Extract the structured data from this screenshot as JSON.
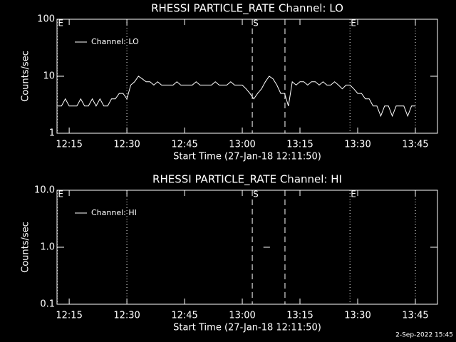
{
  "chart_data": [
    {
      "type": "line",
      "title": "RHESSI PARTICLE_RATE Channel: LO",
      "xlabel": "Start Time (27-Jan-18 12:11:50)",
      "ylabel": "Counts/sec",
      "log_y": true,
      "legend": "top-left",
      "xlim": [
        731.83,
        830.75
      ],
      "xticks": [
        {
          "value": 735,
          "label": "12:15"
        },
        {
          "value": 750,
          "label": "12:30"
        },
        {
          "value": 765,
          "label": "12:45"
        },
        {
          "value": 780,
          "label": "13:00"
        },
        {
          "value": 795,
          "label": "13:15"
        },
        {
          "value": 810,
          "label": "13:30"
        },
        {
          "value": 825,
          "label": "13:45"
        }
      ],
      "ylim": [
        1,
        100
      ],
      "yticks": [
        1,
        10,
        100
      ],
      "x": [
        732,
        733,
        734,
        735,
        736,
        737,
        738,
        739,
        740,
        741,
        742,
        743,
        744,
        745,
        746,
        747,
        748,
        749,
        750,
        751,
        752,
        753,
        754,
        755,
        756,
        757,
        758,
        759,
        760,
        761,
        762,
        763,
        764,
        765,
        766,
        767,
        768,
        769,
        770,
        771,
        772,
        773,
        774,
        775,
        776,
        777,
        778,
        779,
        780,
        781,
        782,
        783,
        784,
        785,
        786,
        787,
        788,
        789,
        790,
        791,
        792,
        793,
        794,
        795,
        796,
        797,
        798,
        799,
        800,
        801,
        802,
        803,
        804,
        805,
        806,
        807,
        808,
        809,
        810,
        811,
        812,
        813,
        814,
        815,
        816,
        817,
        818,
        819,
        820,
        821,
        822,
        823,
        824,
        825
      ],
      "series": [
        {
          "name": "Channel: LO",
          "color": "#ffffff",
          "values": [
            3,
            3,
            4,
            3,
            3,
            3,
            4,
            3,
            3,
            4,
            3,
            4,
            3,
            3,
            4,
            4,
            5,
            5,
            4,
            7,
            8,
            10,
            9,
            8,
            8,
            7,
            8,
            7,
            7,
            7,
            7,
            8,
            7,
            7,
            7,
            7,
            8,
            7,
            7,
            7,
            7,
            8,
            7,
            7,
            7,
            8,
            7,
            7,
            7,
            6,
            5,
            4,
            5,
            6,
            8,
            10,
            9,
            7,
            5,
            5,
            3,
            8,
            7,
            8,
            8,
            7,
            8,
            8,
            7,
            8,
            7,
            7,
            8,
            7,
            6,
            7,
            7,
            6,
            5,
            5,
            4,
            4,
            3,
            3,
            2,
            3,
            3,
            2,
            3,
            3,
            3,
            2,
            3,
            3
          ]
        }
      ],
      "vlines": [
        {
          "x": 731.9,
          "style": "dotted",
          "label": "E"
        },
        {
          "x": 750,
          "style": "dotted"
        },
        {
          "x": 782.6,
          "style": "dashed",
          "label": "S"
        },
        {
          "x": 791.1,
          "style": "dashed"
        },
        {
          "x": 808,
          "style": "dotted",
          "label": "E"
        },
        {
          "x": 825,
          "style": "dotted"
        }
      ]
    },
    {
      "type": "line",
      "title": "RHESSI PARTICLE_RATE Channel: HI",
      "xlabel": "Start Time (27-Jan-18 12:11:50)",
      "ylabel": "Counts/sec",
      "log_y": true,
      "legend": "top-left",
      "xlim": [
        731.83,
        830.75
      ],
      "xticks": [
        {
          "value": 735,
          "label": "12:15"
        },
        {
          "value": 750,
          "label": "12:30"
        },
        {
          "value": 765,
          "label": "12:45"
        },
        {
          "value": 780,
          "label": "13:00"
        },
        {
          "value": 795,
          "label": "13:15"
        },
        {
          "value": 810,
          "label": "13:30"
        },
        {
          "value": 825,
          "label": "13:45"
        }
      ],
      "ylim": [
        0.1,
        10
      ],
      "yticks": [
        0.1,
        {
          "value": 1,
          "label": "1.0"
        },
        {
          "value": 10,
          "label": "10.0"
        }
      ],
      "x": [
        785.5,
        787.2
      ],
      "series": [
        {
          "name": "Channel: HI",
          "color": "#ffffff",
          "values": [
            1,
            1
          ]
        }
      ],
      "vlines": [
        {
          "x": 731.9,
          "style": "dotted",
          "label": "E"
        },
        {
          "x": 750,
          "style": "dotted"
        },
        {
          "x": 782.6,
          "style": "dashed",
          "label": "S"
        },
        {
          "x": 791.1,
          "style": "dashed"
        },
        {
          "x": 808,
          "style": "dotted",
          "label": "E"
        },
        {
          "x": 825,
          "style": "dotted"
        }
      ]
    }
  ],
  "timestamp": "2-Sep-2022 15:45"
}
